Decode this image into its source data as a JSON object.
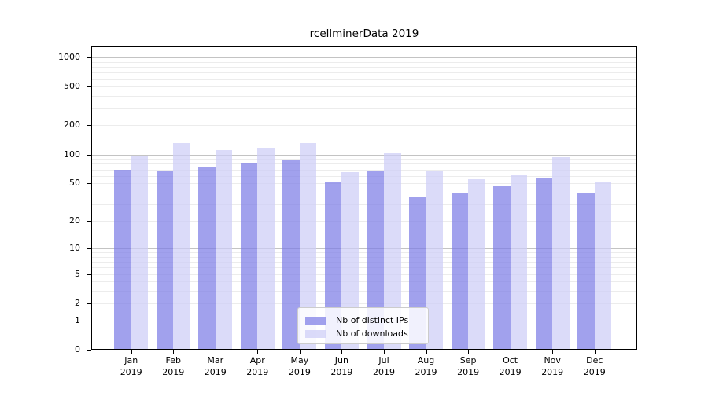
{
  "title": "rcellminerData 2019",
  "chart_data": {
    "type": "bar",
    "title": "rcellminerData 2019",
    "yscale": "log1p",
    "categories": [
      "Jan",
      "Feb",
      "Mar",
      "Apr",
      "May",
      "Jun",
      "Jul",
      "Aug",
      "Sep",
      "Oct",
      "Nov",
      "Dec"
    ],
    "x_tick_year": "2019",
    "series": [
      {
        "name": "Nb of distinct IPs",
        "color": "#a3a3ec",
        "fill": "rgba(125,125,230,0.72)",
        "values": [
          70,
          68,
          74,
          81,
          87,
          52,
          68,
          36,
          39,
          47,
          56,
          39
        ]
      },
      {
        "name": "Nb of downloads",
        "color": "#dadaf8",
        "fill": "rgba(205,205,246,0.72)",
        "values": [
          96,
          132,
          112,
          117,
          131,
          65,
          103,
          68,
          55,
          61,
          94,
          51
        ]
      }
    ],
    "y_ticks": [
      0,
      1,
      2,
      5,
      10,
      20,
      50,
      100,
      200,
      500,
      1000
    ],
    "ylim": [
      0,
      1300
    ],
    "grid": {
      "major_lines": [
        1,
        10,
        100,
        1000
      ],
      "minor_lines": [
        2,
        3,
        4,
        5,
        6,
        7,
        8,
        9,
        20,
        30,
        40,
        50,
        60,
        70,
        80,
        90,
        200,
        300,
        400,
        500,
        600,
        700,
        800,
        900
      ],
      "major_color": "#c3c3c3",
      "minor_color": "#ececec"
    },
    "legend_position": "bottom-center",
    "axis_color": "#000000",
    "background_color": "#ffffff"
  }
}
